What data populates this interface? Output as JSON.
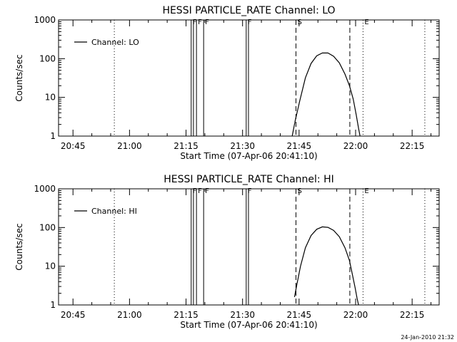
{
  "chart_data": [
    {
      "type": "line",
      "title": "HESSI PARTICLE_RATE Channel: LO",
      "xlabel": "Start Time (07-Apr-06 20:41:10)",
      "ylabel": "Counts/sec",
      "x_unit": "minutes since 20:41:10",
      "xlim": [
        0,
        101
      ],
      "ylim": [
        1,
        1000
      ],
      "yscale": "log",
      "x_ticks": [
        {
          "t": 3.83,
          "label": "20:45"
        },
        {
          "t": 18.83,
          "label": "21:00"
        },
        {
          "t": 33.83,
          "label": "21:15"
        },
        {
          "t": 48.83,
          "label": "21:30"
        },
        {
          "t": 63.83,
          "label": "21:45"
        },
        {
          "t": 78.83,
          "label": "22:00"
        },
        {
          "t": 93.83,
          "label": "22:15"
        }
      ],
      "y_ticks": [
        {
          "v": 1,
          "label": "1"
        },
        {
          "v": 10,
          "label": "10"
        },
        {
          "v": 100,
          "label": "100"
        },
        {
          "v": 1000,
          "label": "1000"
        }
      ],
      "legend": {
        "label": "Channel: LO",
        "position": "top-left"
      },
      "series": [
        {
          "name": "Channel: LO",
          "x": [
            62.0,
            62.8,
            64.0,
            65.5,
            67.0,
            68.5,
            70.0,
            71.5,
            73.0,
            74.5,
            76.0,
            77.2,
            78.2,
            79.0,
            79.6,
            80.0
          ],
          "y": [
            1.0,
            2.5,
            8.0,
            32,
            75,
            118,
            140,
            140,
            115,
            78,
            40,
            20,
            9,
            3.5,
            1.6,
            1.0
          ]
        }
      ],
      "markers": [
        {
          "t": 14.8,
          "label": "",
          "style": "dotted"
        },
        {
          "t": 35.2,
          "label": "F",
          "style": "solid"
        },
        {
          "t": 35.8,
          "label": "",
          "style": "solid"
        },
        {
          "t": 36.6,
          "label": "F",
          "style": "solid"
        },
        {
          "t": 38.5,
          "label": "F",
          "style": "solid"
        },
        {
          "t": 49.8,
          "label": "F",
          "style": "solid"
        },
        {
          "t": 50.4,
          "label": "",
          "style": "solid"
        },
        {
          "t": 63.0,
          "label": "S",
          "style": "dashed"
        },
        {
          "t": 77.3,
          "label": "",
          "style": "dashed"
        },
        {
          "t": 80.8,
          "label": "E",
          "style": "dotted"
        },
        {
          "t": 97.2,
          "label": "",
          "style": "dotted"
        }
      ]
    },
    {
      "type": "line",
      "title": "HESSI PARTICLE_RATE Channel: HI",
      "xlabel": "Start Time (07-Apr-06 20:41:10)",
      "ylabel": "Counts/sec",
      "x_unit": "minutes since 20:41:10",
      "xlim": [
        0,
        101
      ],
      "ylim": [
        1,
        1000
      ],
      "yscale": "log",
      "x_ticks": [
        {
          "t": 3.83,
          "label": "20:45"
        },
        {
          "t": 18.83,
          "label": "21:00"
        },
        {
          "t": 33.83,
          "label": "21:15"
        },
        {
          "t": 48.83,
          "label": "21:30"
        },
        {
          "t": 63.83,
          "label": "21:45"
        },
        {
          "t": 78.83,
          "label": "22:00"
        },
        {
          "t": 93.83,
          "label": "22:15"
        }
      ],
      "y_ticks": [
        {
          "v": 1,
          "label": "1"
        },
        {
          "v": 10,
          "label": "10"
        },
        {
          "v": 100,
          "label": "100"
        },
        {
          "v": 1000,
          "label": "1000"
        }
      ],
      "legend": {
        "label": "Channel: HI",
        "position": "top-left"
      },
      "series": [
        {
          "name": "Channel: HI",
          "x": [
            62.6,
            63.2,
            64.2,
            65.5,
            67.0,
            68.5,
            70.0,
            71.5,
            73.0,
            74.5,
            76.0,
            77.2,
            78.0,
            78.7,
            79.2,
            79.6
          ],
          "y": [
            1.6,
            3.2,
            10,
            30,
            62,
            90,
            104,
            101,
            84,
            58,
            30,
            14,
            6,
            2.8,
            1.5,
            1.0
          ]
        }
      ],
      "markers": [
        {
          "t": 14.8,
          "label": "",
          "style": "dotted"
        },
        {
          "t": 35.2,
          "label": "F",
          "style": "solid"
        },
        {
          "t": 35.8,
          "label": "",
          "style": "solid"
        },
        {
          "t": 36.6,
          "label": "F",
          "style": "solid"
        },
        {
          "t": 38.5,
          "label": "F",
          "style": "solid"
        },
        {
          "t": 49.8,
          "label": "F",
          "style": "solid"
        },
        {
          "t": 50.4,
          "label": "",
          "style": "solid"
        },
        {
          "t": 63.0,
          "label": "S",
          "style": "dashed"
        },
        {
          "t": 77.3,
          "label": "",
          "style": "dashed"
        },
        {
          "t": 80.8,
          "label": "E",
          "style": "dotted"
        },
        {
          "t": 97.2,
          "label": "",
          "style": "dotted"
        }
      ]
    }
  ],
  "footer": {
    "timestamp": "24-Jan-2010 21:32"
  }
}
